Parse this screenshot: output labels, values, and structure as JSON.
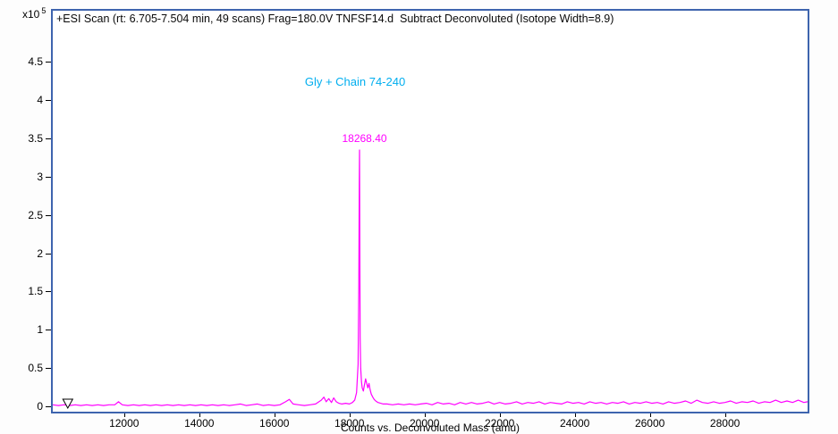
{
  "plot": {
    "title": "+ESI Scan (rt: 6.705-7.504 min, 49 scans) Frag=180.0V TNFSF14.d  Subtract Deconvoluted (Isotope Width=8.9)",
    "x_axis_label": "Counts vs. Deconvoluted Mass (amu)",
    "y_axis_exponent_base": "x10",
    "y_axis_exponent_power": "5"
  },
  "annotations": {
    "species": {
      "text": "Gly + Chain 74-240",
      "color": "#00AEEF",
      "mass": 18150,
      "value": 4.15
    },
    "peak": {
      "text": "18268.40",
      "color": "#FF00FF",
      "mass": 18400,
      "value": 3.42
    }
  },
  "marker": {
    "shape": "open-down-triangle",
    "mass": 10500,
    "value": 0
  },
  "colors": {
    "trace": "#FF00FF",
    "plot_border": "#3E64AE",
    "species_annotation": "#00AEEF",
    "peak_label": "#FF00FF",
    "axis_text": "#000000"
  },
  "chart_data": {
    "type": "line",
    "title": "+ESI Scan (rt: 6.705-7.504 min, 49 scans) Frag=180.0V TNFSF14.d  Subtract Deconvoluted (Isotope Width=8.9)",
    "xlabel": "Counts vs. Deconvoluted Mass (amu)",
    "ylabel": "Counts (x10^5)",
    "xlim": [
      10100,
      30200
    ],
    "ylim": [
      -0.07,
      5.17
    ],
    "x_ticks": [
      12000,
      14000,
      16000,
      18000,
      20000,
      22000,
      24000,
      26000,
      28000
    ],
    "y_ticks": [
      0,
      0.5,
      1,
      1.5,
      2,
      2.5,
      3,
      3.5,
      4,
      4.5
    ],
    "grid": false,
    "legend": false,
    "main_peak": {
      "mass": 18268.4,
      "intensity_counts": 335000,
      "label": "18268.40",
      "assignment": "Gly + Chain 74-240"
    },
    "series": [
      {
        "name": "Subtract Deconvoluted spectrum",
        "color": "#FF00FF",
        "points": [
          [
            10100,
            0.02
          ],
          [
            10250,
            0.01
          ],
          [
            10400,
            0.02
          ],
          [
            10550,
            0.01
          ],
          [
            10700,
            0.02
          ],
          [
            10850,
            0.01
          ],
          [
            11000,
            0.02
          ],
          [
            11150,
            0.01
          ],
          [
            11300,
            0.02
          ],
          [
            11450,
            0.01
          ],
          [
            11600,
            0.02
          ],
          [
            11750,
            0.02
          ],
          [
            11850,
            0.06
          ],
          [
            11950,
            0.02
          ],
          [
            12100,
            0.01
          ],
          [
            12250,
            0.02
          ],
          [
            12400,
            0.01
          ],
          [
            12550,
            0.02
          ],
          [
            12700,
            0.01
          ],
          [
            12850,
            0.02
          ],
          [
            13000,
            0.01
          ],
          [
            13150,
            0.02
          ],
          [
            13300,
            0.01
          ],
          [
            13450,
            0.02
          ],
          [
            13600,
            0.01
          ],
          [
            13750,
            0.02
          ],
          [
            13900,
            0.01
          ],
          [
            14050,
            0.02
          ],
          [
            14200,
            0.01
          ],
          [
            14350,
            0.02
          ],
          [
            14500,
            0.01
          ],
          [
            14650,
            0.02
          ],
          [
            14800,
            0.01
          ],
          [
            14950,
            0.02
          ],
          [
            15100,
            0.03
          ],
          [
            15250,
            0.01
          ],
          [
            15400,
            0.02
          ],
          [
            15550,
            0.03
          ],
          [
            15700,
            0.01
          ],
          [
            15850,
            0.02
          ],
          [
            16000,
            0.01
          ],
          [
            16150,
            0.02
          ],
          [
            16300,
            0.06
          ],
          [
            16400,
            0.09
          ],
          [
            16500,
            0.03
          ],
          [
            16650,
            0.02
          ],
          [
            16800,
            0.01
          ],
          [
            16950,
            0.02
          ],
          [
            17100,
            0.03
          ],
          [
            17250,
            0.08
          ],
          [
            17320,
            0.12
          ],
          [
            17380,
            0.06
          ],
          [
            17450,
            0.1
          ],
          [
            17520,
            0.05
          ],
          [
            17580,
            0.11
          ],
          [
            17650,
            0.06
          ],
          [
            17720,
            0.04
          ],
          [
            17800,
            0.03
          ],
          [
            17900,
            0.04
          ],
          [
            18000,
            0.03
          ],
          [
            18080,
            0.05
          ],
          [
            18140,
            0.08
          ],
          [
            18190,
            0.18
          ],
          [
            18230,
            0.55
          ],
          [
            18250,
            1.6
          ],
          [
            18262,
            2.9
          ],
          [
            18268,
            3.35
          ],
          [
            18275,
            2.2
          ],
          [
            18285,
            0.9
          ],
          [
            18300,
            0.5
          ],
          [
            18320,
            0.32
          ],
          [
            18340,
            0.24
          ],
          [
            18370,
            0.2
          ],
          [
            18400,
            0.28
          ],
          [
            18430,
            0.36
          ],
          [
            18460,
            0.3
          ],
          [
            18490,
            0.24
          ],
          [
            18520,
            0.3
          ],
          [
            18550,
            0.22
          ],
          [
            18580,
            0.16
          ],
          [
            18620,
            0.12
          ],
          [
            18660,
            0.09
          ],
          [
            18700,
            0.07
          ],
          [
            18760,
            0.05
          ],
          [
            18830,
            0.04
          ],
          [
            18900,
            0.03
          ],
          [
            19000,
            0.03
          ],
          [
            19150,
            0.02
          ],
          [
            19300,
            0.03
          ],
          [
            19450,
            0.02
          ],
          [
            19600,
            0.03
          ],
          [
            19750,
            0.02
          ],
          [
            19900,
            0.03
          ],
          [
            20050,
            0.04
          ],
          [
            20200,
            0.02
          ],
          [
            20350,
            0.05
          ],
          [
            20500,
            0.03
          ],
          [
            20650,
            0.04
          ],
          [
            20800,
            0.02
          ],
          [
            20950,
            0.05
          ],
          [
            21100,
            0.03
          ],
          [
            21250,
            0.05
          ],
          [
            21400,
            0.03
          ],
          [
            21550,
            0.04
          ],
          [
            21700,
            0.06
          ],
          [
            21850,
            0.03
          ],
          [
            22000,
            0.05
          ],
          [
            22150,
            0.03
          ],
          [
            22300,
            0.04
          ],
          [
            22450,
            0.06
          ],
          [
            22600,
            0.03
          ],
          [
            22750,
            0.05
          ],
          [
            22900,
            0.04
          ],
          [
            23050,
            0.06
          ],
          [
            23200,
            0.03
          ],
          [
            23350,
            0.05
          ],
          [
            23500,
            0.04
          ],
          [
            23650,
            0.03
          ],
          [
            23800,
            0.06
          ],
          [
            23950,
            0.04
          ],
          [
            24100,
            0.05
          ],
          [
            24250,
            0.03
          ],
          [
            24400,
            0.06
          ],
          [
            24550,
            0.04
          ],
          [
            24700,
            0.05
          ],
          [
            24850,
            0.03
          ],
          [
            25000,
            0.05
          ],
          [
            25150,
            0.04
          ],
          [
            25300,
            0.06
          ],
          [
            25450,
            0.03
          ],
          [
            25600,
            0.05
          ],
          [
            25750,
            0.04
          ],
          [
            25900,
            0.06
          ],
          [
            26050,
            0.04
          ],
          [
            26200,
            0.05
          ],
          [
            26350,
            0.03
          ],
          [
            26500,
            0.06
          ],
          [
            26650,
            0.04
          ],
          [
            26800,
            0.05
          ],
          [
            26950,
            0.07
          ],
          [
            27100,
            0.04
          ],
          [
            27250,
            0.08
          ],
          [
            27400,
            0.05
          ],
          [
            27550,
            0.04
          ],
          [
            27700,
            0.06
          ],
          [
            27850,
            0.04
          ],
          [
            28000,
            0.05
          ],
          [
            28150,
            0.07
          ],
          [
            28300,
            0.04
          ],
          [
            28450,
            0.06
          ],
          [
            28600,
            0.05
          ],
          [
            28750,
            0.07
          ],
          [
            28900,
            0.04
          ],
          [
            29050,
            0.06
          ],
          [
            29200,
            0.05
          ],
          [
            29350,
            0.08
          ],
          [
            29500,
            0.05
          ],
          [
            29650,
            0.07
          ],
          [
            29800,
            0.05
          ],
          [
            29950,
            0.08
          ],
          [
            30100,
            0.05
          ],
          [
            30200,
            0.06
          ]
        ]
      }
    ]
  }
}
